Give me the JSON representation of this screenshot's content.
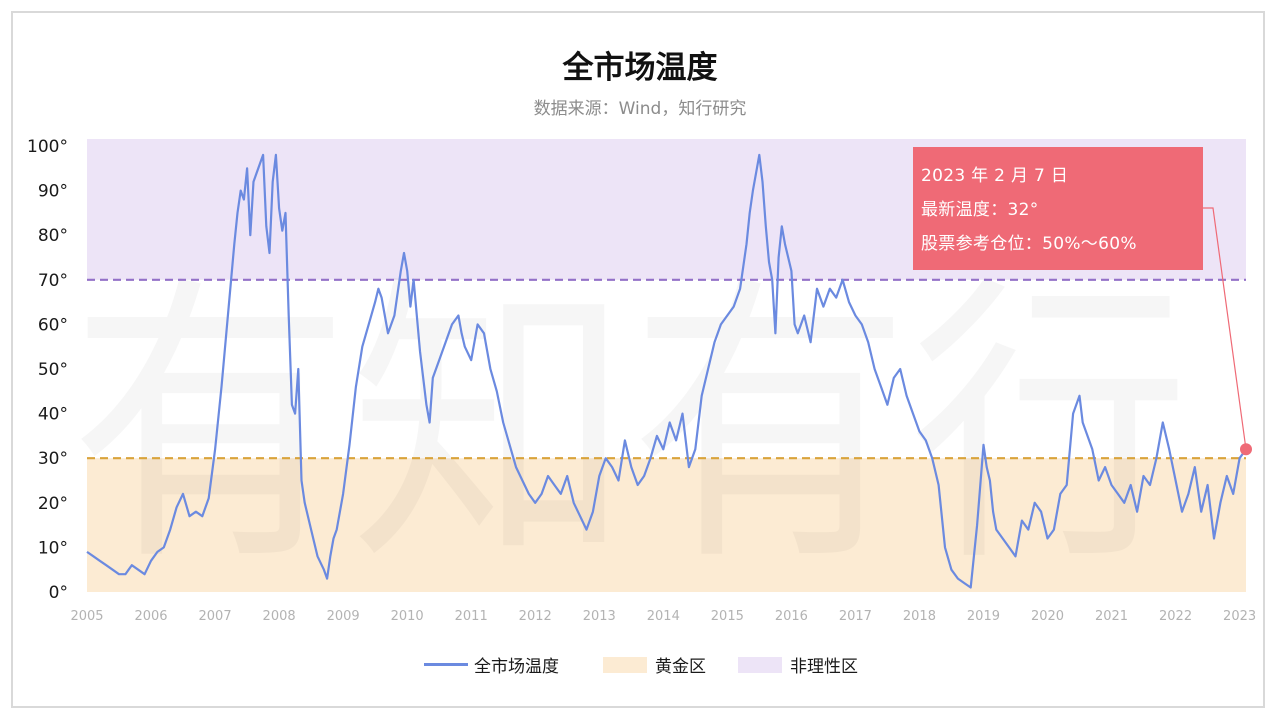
{
  "title": "全市场温度",
  "subtitle": "数据来源：Wind，知行研究",
  "watermark": "有知有行",
  "callout": {
    "date": "2023 年 2 月 7 日",
    "temperature": "最新温度：32°",
    "position": "股票参考仓位：50%～60%"
  },
  "legend": {
    "series": "全市场温度",
    "gold": "黄金区",
    "irrational": "非理性区"
  },
  "colors": {
    "line": "#6b8ae0",
    "gold_zone": "#fcebd3",
    "gold_threshold": "#d9a33a",
    "irrational_zone": "#ede4f7",
    "irrational_threshold": "#9370c8",
    "callout": "#ef6a76"
  },
  "chart_data": {
    "type": "line",
    "title": "全市场温度",
    "ylim": [
      0,
      100
    ],
    "y_ticks": [
      "0°",
      "10°",
      "20°",
      "30°",
      "40°",
      "50°",
      "60°",
      "70°",
      "80°",
      "90°",
      "100°"
    ],
    "x_ticks": [
      "2005",
      "2006",
      "2007",
      "2008",
      "2009",
      "2010",
      "2011",
      "2012",
      "2013",
      "2014",
      "2015",
      "2016",
      "2017",
      "2018",
      "2019",
      "2020",
      "2021",
      "2022",
      "2023"
    ],
    "zones": [
      {
        "name": "黄金区",
        "from": 0,
        "to": 30
      },
      {
        "name": "非理性区",
        "from": 70,
        "to": 100
      }
    ],
    "thresholds": [
      30,
      70
    ],
    "latest": {
      "x": 2023.1,
      "y": 32
    },
    "series": [
      {
        "name": "全市场温度",
        "x": [
          2005.0,
          2005.1,
          2005.2,
          2005.3,
          2005.4,
          2005.5,
          2005.6,
          2005.7,
          2005.8,
          2005.9,
          2006.0,
          2006.1,
          2006.2,
          2006.3,
          2006.4,
          2006.5,
          2006.6,
          2006.7,
          2006.8,
          2006.9,
          2007.0,
          2007.1,
          2007.2,
          2007.3,
          2007.35,
          2007.4,
          2007.45,
          2007.5,
          2007.55,
          2007.6,
          2007.7,
          2007.75,
          2007.8,
          2007.85,
          2007.9,
          2007.95,
          2008.0,
          2008.05,
          2008.1,
          2008.15,
          2008.2,
          2008.25,
          2008.3,
          2008.35,
          2008.4,
          2008.5,
          2008.6,
          2008.7,
          2008.75,
          2008.8,
          2008.85,
          2008.9,
          2009.0,
          2009.1,
          2009.2,
          2009.3,
          2009.4,
          2009.5,
          2009.55,
          2009.6,
          2009.65,
          2009.7,
          2009.8,
          2009.9,
          2009.95,
          2010.0,
          2010.05,
          2010.1,
          2010.2,
          2010.3,
          2010.35,
          2010.4,
          2010.5,
          2010.6,
          2010.7,
          2010.8,
          2010.85,
          2010.9,
          2011.0,
          2011.1,
          2011.2,
          2011.3,
          2011.4,
          2011.5,
          2011.6,
          2011.7,
          2011.8,
          2011.9,
          2012.0,
          2012.1,
          2012.2,
          2012.3,
          2012.4,
          2012.5,
          2012.6,
          2012.7,
          2012.8,
          2012.9,
          2013.0,
          2013.1,
          2013.2,
          2013.3,
          2013.4,
          2013.5,
          2013.6,
          2013.7,
          2013.8,
          2013.9,
          2014.0,
          2014.1,
          2014.2,
          2014.3,
          2014.4,
          2014.5,
          2014.6,
          2014.7,
          2014.8,
          2014.9,
          2015.0,
          2015.1,
          2015.2,
          2015.3,
          2015.35,
          2015.4,
          2015.45,
          2015.5,
          2015.55,
          2015.6,
          2015.65,
          2015.7,
          2015.75,
          2015.8,
          2015.85,
          2015.9,
          2016.0,
          2016.05,
          2016.1,
          2016.2,
          2016.3,
          2016.4,
          2016.5,
          2016.6,
          2016.7,
          2016.8,
          2016.9,
          2017.0,
          2017.1,
          2017.2,
          2017.3,
          2017.4,
          2017.5,
          2017.6,
          2017.7,
          2017.8,
          2017.9,
          2018.0,
          2018.1,
          2018.2,
          2018.3,
          2018.4,
          2018.5,
          2018.6,
          2018.7,
          2018.8,
          2018.9,
          2019.0,
          2019.05,
          2019.1,
          2019.15,
          2019.2,
          2019.3,
          2019.4,
          2019.5,
          2019.6,
          2019.7,
          2019.8,
          2019.9,
          2020.0,
          2020.1,
          2020.2,
          2020.3,
          2020.4,
          2020.5,
          2020.55,
          2020.6,
          2020.7,
          2020.8,
          2020.9,
          2021.0,
          2021.1,
          2021.2,
          2021.3,
          2021.4,
          2021.5,
          2021.6,
          2021.7,
          2021.8,
          2021.9,
          2022.0,
          2022.1,
          2022.2,
          2022.3,
          2022.4,
          2022.5,
          2022.6,
          2022.7,
          2022.8,
          2022.9,
          2023.0,
          2023.1
        ],
        "y": [
          9,
          8,
          7,
          6,
          5,
          4,
          4,
          6,
          5,
          4,
          7,
          9,
          10,
          14,
          19,
          22,
          17,
          18,
          17,
          21,
          32,
          46,
          62,
          78,
          85,
          90,
          88,
          95,
          80,
          92,
          96,
          98,
          82,
          76,
          92,
          98,
          86,
          81,
          85,
          62,
          42,
          40,
          50,
          25,
          20,
          14,
          8,
          5,
          3,
          8,
          12,
          14,
          22,
          33,
          46,
          55,
          60,
          65,
          68,
          66,
          62,
          58,
          62,
          72,
          76,
          72,
          64,
          70,
          54,
          42,
          38,
          48,
          52,
          56,
          60,
          62,
          58,
          55,
          52,
          60,
          58,
          50,
          45,
          38,
          33,
          28,
          25,
          22,
          20,
          22,
          26,
          24,
          22,
          26,
          20,
          17,
          14,
          18,
          26,
          30,
          28,
          25,
          34,
          28,
          24,
          26,
          30,
          35,
          32,
          38,
          34,
          40,
          28,
          32,
          44,
          50,
          56,
          60,
          62,
          64,
          68,
          78,
          85,
          90,
          94,
          98,
          92,
          82,
          74,
          70,
          58,
          75,
          82,
          78,
          72,
          60,
          58,
          62,
          56,
          68,
          64,
          68,
          66,
          70,
          65,
          62,
          60,
          56,
          50,
          46,
          42,
          48,
          50,
          44,
          40,
          36,
          34,
          30,
          24,
          10,
          5,
          3,
          2,
          1,
          15,
          33,
          28,
          25,
          18,
          14,
          12,
          10,
          8,
          16,
          14,
          20,
          18,
          12,
          14,
          22,
          24,
          40,
          44,
          38,
          36,
          32,
          25,
          28,
          24,
          22,
          20,
          24,
          18,
          26,
          24,
          30,
          38,
          32,
          25,
          18,
          22,
          28,
          18,
          24,
          12,
          20,
          26,
          22,
          30,
          32
        ]
      }
    ]
  }
}
